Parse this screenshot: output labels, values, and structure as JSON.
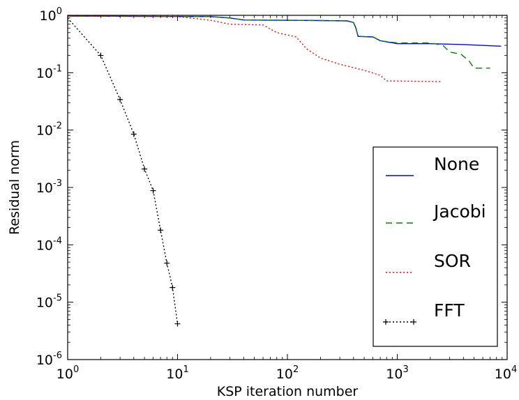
{
  "chart_data": {
    "type": "line",
    "xlabel": "KSP iteration number",
    "ylabel": "Residual norm",
    "xscale": "log",
    "yscale": "log",
    "xlim": [
      1,
      10000
    ],
    "ylim": [
      1e-06,
      1
    ],
    "grid": false,
    "legend_position": "right",
    "x_ticks": [
      {
        "base": "10",
        "exp": "0",
        "value": 1
      },
      {
        "base": "10",
        "exp": "1",
        "value": 10
      },
      {
        "base": "10",
        "exp": "2",
        "value": 100
      },
      {
        "base": "10",
        "exp": "3",
        "value": 1000
      },
      {
        "base": "10",
        "exp": "4",
        "value": 10000
      }
    ],
    "y_ticks": [
      {
        "base": "10",
        "exp": "0",
        "value": 1
      },
      {
        "base": "10",
        "exp": "-1",
        "value": 0.1
      },
      {
        "base": "10",
        "exp": "-2",
        "value": 0.01
      },
      {
        "base": "10",
        "exp": "-3",
        "value": 0.001
      },
      {
        "base": "10",
        "exp": "-4",
        "value": 0.0001
      },
      {
        "base": "10",
        "exp": "-5",
        "value": 1e-05
      },
      {
        "base": "10",
        "exp": "-6",
        "value": 1e-06
      }
    ],
    "series": [
      {
        "name": "None",
        "color": "#0000ff",
        "style": "solid",
        "marker": "none",
        "points": [
          [
            1,
            0.97
          ],
          [
            20,
            0.95
          ],
          [
            30,
            0.9
          ],
          [
            40,
            0.83
          ],
          [
            100,
            0.82
          ],
          [
            200,
            0.81
          ],
          [
            350,
            0.8
          ],
          [
            400,
            0.75
          ],
          [
            420,
            0.6
          ],
          [
            440,
            0.43
          ],
          [
            600,
            0.42
          ],
          [
            700,
            0.36
          ],
          [
            1000,
            0.32
          ],
          [
            2000,
            0.32
          ],
          [
            4000,
            0.31
          ],
          [
            8800,
            0.29
          ]
        ]
      },
      {
        "name": "Jacobi",
        "color": "#008000",
        "style": "dashed",
        "marker": "none",
        "points": [
          [
            1,
            0.97
          ],
          [
            20,
            0.95
          ],
          [
            30,
            0.9
          ],
          [
            40,
            0.83
          ],
          [
            100,
            0.82
          ],
          [
            200,
            0.81
          ],
          [
            350,
            0.8
          ],
          [
            400,
            0.75
          ],
          [
            420,
            0.6
          ],
          [
            440,
            0.43
          ],
          [
            600,
            0.42
          ],
          [
            700,
            0.36
          ],
          [
            1000,
            0.33
          ],
          [
            2000,
            0.33
          ],
          [
            2600,
            0.3
          ],
          [
            3000,
            0.23
          ],
          [
            3800,
            0.21
          ],
          [
            4500,
            0.16
          ],
          [
            5000,
            0.12
          ],
          [
            7000,
            0.12
          ]
        ]
      },
      {
        "name": "SOR",
        "color": "#ff0000",
        "style": "dotted",
        "marker": "none",
        "points": [
          [
            1,
            0.97
          ],
          [
            10,
            0.95
          ],
          [
            20,
            0.82
          ],
          [
            30,
            0.7
          ],
          [
            60,
            0.68
          ],
          [
            80,
            0.5
          ],
          [
            120,
            0.42
          ],
          [
            150,
            0.26
          ],
          [
            200,
            0.18
          ],
          [
            300,
            0.14
          ],
          [
            500,
            0.11
          ],
          [
            700,
            0.09
          ],
          [
            800,
            0.072
          ],
          [
            2500,
            0.07
          ]
        ]
      },
      {
        "name": "FFT",
        "color": "#000000",
        "style": "dotted",
        "marker": "+",
        "points": [
          [
            1,
            0.9
          ],
          [
            2,
            0.2
          ],
          [
            3,
            0.034
          ],
          [
            4,
            0.0085
          ],
          [
            5,
            0.0021
          ],
          [
            6,
            0.00088
          ],
          [
            7,
            0.00018
          ],
          [
            8,
            4.8e-05
          ],
          [
            9,
            1.8e-05
          ],
          [
            10,
            4.2e-06
          ]
        ]
      }
    ]
  }
}
